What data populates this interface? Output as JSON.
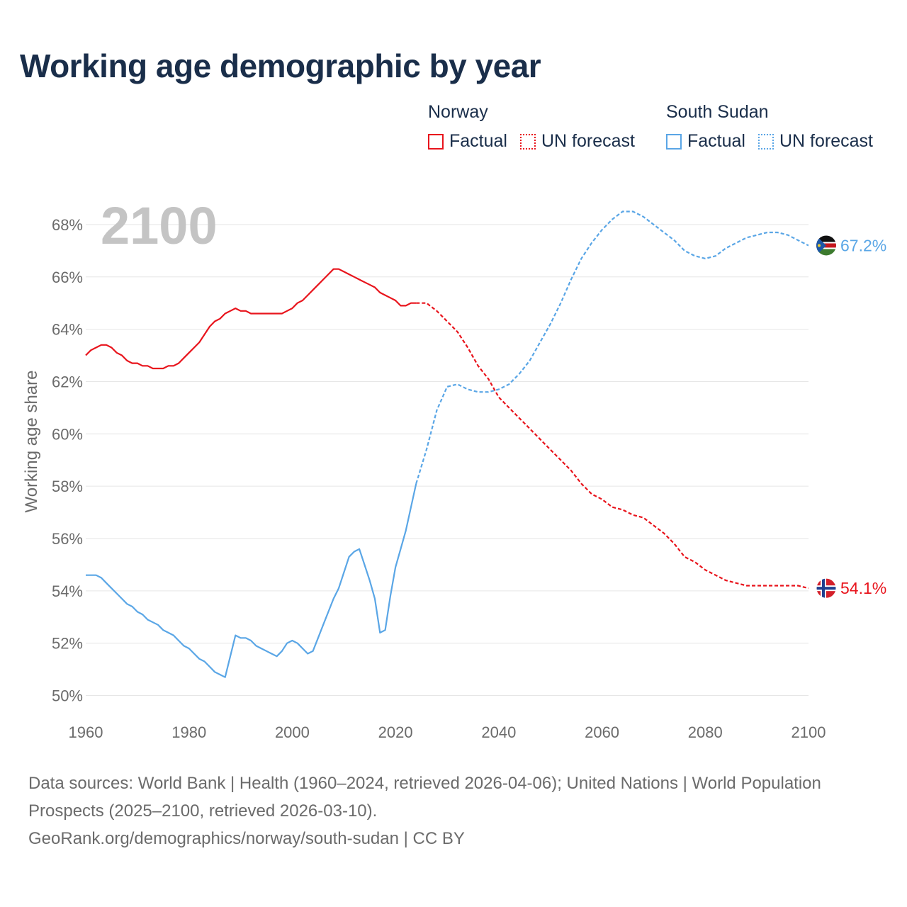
{
  "title": "Working age demographic by year",
  "year_label": "2100",
  "legend": {
    "groups": [
      {
        "country": "Norway",
        "color": "#e8141c",
        "factual_label": "Factual",
        "forecast_label": "UN forecast"
      },
      {
        "country": "South Sudan",
        "color": "#5aa6e6",
        "factual_label": "Factual",
        "forecast_label": "UN forecast"
      }
    ]
  },
  "footer": {
    "sources": "Data sources: World Bank | Health (1960–2024, retrieved 2026-04-06); United Nations | World Population Prospects (2025–2100, retrieved 2026-03-10).",
    "credit": "GeoRank.org/demographics/norway/south-sudan | CC BY"
  },
  "chart_data": {
    "type": "line",
    "title": "Working age demographic by year",
    "xlabel": "",
    "ylabel": "Working age share",
    "xlim": [
      1960,
      2100
    ],
    "ylim": [
      49.5,
      69
    ],
    "x_ticks": [
      1960,
      1980,
      2000,
      2020,
      2040,
      2060,
      2080,
      2100
    ],
    "y_ticks": [
      50,
      52,
      54,
      56,
      58,
      60,
      62,
      64,
      66,
      68
    ],
    "y_tick_labels": [
      "50%",
      "52%",
      "54%",
      "56%",
      "58%",
      "60%",
      "62%",
      "64%",
      "66%",
      "68%"
    ],
    "grid": true,
    "series": [
      {
        "name": "Norway",
        "color": "#e8141c",
        "end_label": "54.1%",
        "flag_icon": "norway-flag-icon",
        "factual": {
          "x": [
            1960,
            1961,
            1962,
            1963,
            1964,
            1965,
            1966,
            1967,
            1968,
            1969,
            1970,
            1971,
            1972,
            1973,
            1974,
            1975,
            1976,
            1977,
            1978,
            1979,
            1980,
            1981,
            1982,
            1983,
            1984,
            1985,
            1986,
            1987,
            1988,
            1989,
            1990,
            1991,
            1992,
            1993,
            1994,
            1995,
            1996,
            1997,
            1998,
            1999,
            2000,
            2001,
            2002,
            2003,
            2004,
            2005,
            2006,
            2007,
            2008,
            2009,
            2010,
            2011,
            2012,
            2013,
            2014,
            2015,
            2016,
            2017,
            2018,
            2019,
            2020,
            2021,
            2022,
            2023,
            2024
          ],
          "y": [
            63.0,
            63.2,
            63.3,
            63.4,
            63.4,
            63.3,
            63.1,
            63.0,
            62.8,
            62.7,
            62.7,
            62.6,
            62.6,
            62.5,
            62.5,
            62.5,
            62.6,
            62.6,
            62.7,
            62.9,
            63.1,
            63.3,
            63.5,
            63.8,
            64.1,
            64.3,
            64.4,
            64.6,
            64.7,
            64.8,
            64.7,
            64.7,
            64.6,
            64.6,
            64.6,
            64.6,
            64.6,
            64.6,
            64.6,
            64.7,
            64.8,
            65.0,
            65.1,
            65.3,
            65.5,
            65.7,
            65.9,
            66.1,
            66.3,
            66.3,
            66.2,
            66.1,
            66.0,
            65.9,
            65.8,
            65.7,
            65.6,
            65.4,
            65.3,
            65.2,
            65.1,
            64.9,
            64.9,
            65.0,
            65.0
          ]
        },
        "forecast": {
          "x": [
            2024,
            2026,
            2028,
            2030,
            2032,
            2034,
            2036,
            2038,
            2040,
            2042,
            2044,
            2046,
            2048,
            2050,
            2052,
            2054,
            2056,
            2058,
            2060,
            2062,
            2064,
            2066,
            2068,
            2070,
            2072,
            2074,
            2076,
            2078,
            2080,
            2082,
            2084,
            2086,
            2088,
            2090,
            2092,
            2094,
            2096,
            2098,
            2100
          ],
          "y": [
            65.0,
            65.0,
            64.7,
            64.3,
            63.9,
            63.3,
            62.6,
            62.1,
            61.4,
            61.0,
            60.6,
            60.2,
            59.8,
            59.4,
            59.0,
            58.6,
            58.1,
            57.7,
            57.5,
            57.2,
            57.1,
            56.9,
            56.8,
            56.5,
            56.2,
            55.8,
            55.3,
            55.1,
            54.8,
            54.6,
            54.4,
            54.3,
            54.2,
            54.2,
            54.2,
            54.2,
            54.2,
            54.2,
            54.1
          ]
        }
      },
      {
        "name": "South Sudan",
        "color": "#5aa6e6",
        "end_label": "67.2%",
        "flag_icon": "south-sudan-flag-icon",
        "factual": {
          "x": [
            1960,
            1961,
            1962,
            1963,
            1964,
            1965,
            1966,
            1967,
            1968,
            1969,
            1970,
            1971,
            1972,
            1973,
            1974,
            1975,
            1976,
            1977,
            1978,
            1979,
            1980,
            1981,
            1982,
            1983,
            1984,
            1985,
            1986,
            1987,
            1988,
            1989,
            1990,
            1991,
            1992,
            1993,
            1994,
            1995,
            1996,
            1997,
            1998,
            1999,
            2000,
            2001,
            2002,
            2003,
            2004,
            2005,
            2006,
            2007,
            2008,
            2009,
            2010,
            2011,
            2012,
            2013,
            2014,
            2015,
            2016,
            2017,
            2018,
            2019,
            2020,
            2021,
            2022,
            2023,
            2024
          ],
          "y": [
            54.6,
            54.6,
            54.6,
            54.5,
            54.3,
            54.1,
            53.9,
            53.7,
            53.5,
            53.4,
            53.2,
            53.1,
            52.9,
            52.8,
            52.7,
            52.5,
            52.4,
            52.3,
            52.1,
            51.9,
            51.8,
            51.6,
            51.4,
            51.3,
            51.1,
            50.9,
            50.8,
            50.7,
            51.5,
            52.3,
            52.2,
            52.2,
            52.1,
            51.9,
            51.8,
            51.7,
            51.6,
            51.5,
            51.7,
            52.0,
            52.1,
            52.0,
            51.8,
            51.6,
            51.7,
            52.2,
            52.7,
            53.2,
            53.7,
            54.1,
            54.7,
            55.3,
            55.5,
            55.6,
            55.0,
            54.4,
            53.7,
            52.4,
            52.5,
            53.8,
            54.9,
            55.6,
            56.3,
            57.2,
            58.1
          ]
        },
        "forecast": {
          "x": [
            2024,
            2026,
            2028,
            2030,
            2032,
            2034,
            2036,
            2038,
            2040,
            2042,
            2044,
            2046,
            2048,
            2050,
            2052,
            2054,
            2056,
            2058,
            2060,
            2062,
            2064,
            2066,
            2068,
            2070,
            2072,
            2074,
            2076,
            2078,
            2080,
            2082,
            2084,
            2086,
            2088,
            2090,
            2092,
            2094,
            2096,
            2098,
            2100
          ],
          "y": [
            58.1,
            59.4,
            60.9,
            61.8,
            61.9,
            61.7,
            61.6,
            61.6,
            61.7,
            61.9,
            62.3,
            62.8,
            63.5,
            64.2,
            65.0,
            65.9,
            66.7,
            67.3,
            67.8,
            68.2,
            68.5,
            68.5,
            68.3,
            68.0,
            67.7,
            67.4,
            67.0,
            66.8,
            66.7,
            66.8,
            67.1,
            67.3,
            67.5,
            67.6,
            67.7,
            67.7,
            67.6,
            67.4,
            67.2
          ]
        }
      }
    ]
  }
}
